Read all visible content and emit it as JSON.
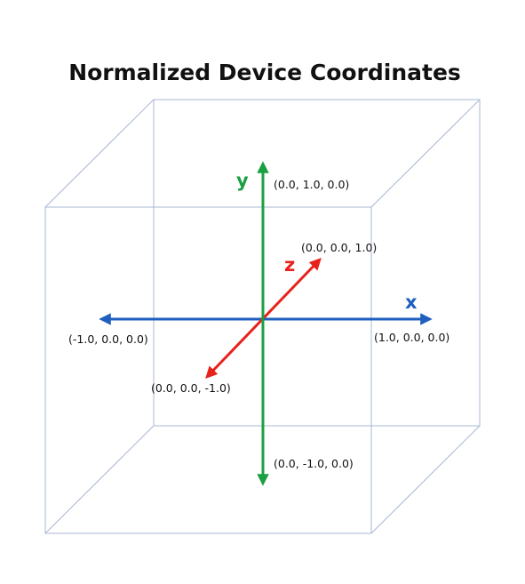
{
  "title": "Normalized Device Coordinates",
  "colors": {
    "x_axis": "#1f5fbf",
    "y_axis": "#1aa043",
    "z_axis": "#e8211b",
    "cube": "#a9b7d3"
  },
  "axes": {
    "x": {
      "letter": "x",
      "positive": "(1.0, 0.0, 0.0)",
      "negative": "(-1.0, 0.0, 0.0)"
    },
    "y": {
      "letter": "y",
      "positive": "(0.0, 1.0, 0.0)",
      "negative": "(0.0, -1.0, 0.0)"
    },
    "z": {
      "letter": "z",
      "positive": "(0.0, 0.0, 1.0)",
      "negative": "(0.0, 0.0, -1.0)"
    }
  }
}
